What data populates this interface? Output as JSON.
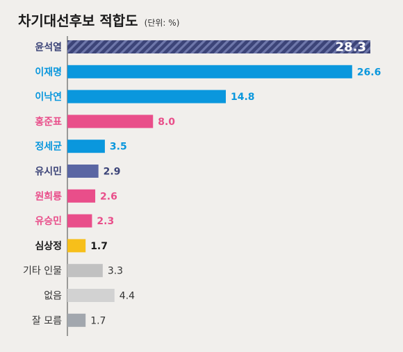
{
  "chart_data": {
    "type": "bar",
    "orientation": "horizontal",
    "title": "차기대선후보 적합도",
    "unit": "(단위: %)",
    "xlim": [
      0,
      28.3
    ],
    "grid": false,
    "legend": "none",
    "categories": [
      "윤석열",
      "이재명",
      "이낙연",
      "홍준표",
      "정세균",
      "유시민",
      "원희룡",
      "유승민",
      "심상정",
      "기타 인물",
      "없음",
      "잘 모름"
    ],
    "values": [
      28.3,
      26.6,
      14.8,
      8.0,
      3.5,
      2.9,
      2.6,
      2.3,
      1.7,
      3.3,
      4.4,
      1.7
    ],
    "value_labels": [
      "28.3",
      "26.6",
      "14.8",
      "8.0",
      "3.5",
      "2.9",
      "2.6",
      "2.3",
      "1.7",
      "3.3",
      "4.4",
      "1.7"
    ],
    "colors": [
      "#3c4478",
      "#0a97dd",
      "#0a97dd",
      "#e94e8a",
      "#0a97dd",
      "#5a66a3",
      "#e94e8a",
      "#e94e8a",
      "#f7bf1a",
      "#c1c1c1",
      "#d2d2d2",
      "#a2a7ae"
    ],
    "label_colors": [
      "#3c4478",
      "#0a97dd",
      "#0a97dd",
      "#e94e8a",
      "#0a97dd",
      "#3c4478",
      "#e94e8a",
      "#e94e8a",
      "#1a1a1a",
      "#333333",
      "#333333",
      "#333333"
    ],
    "label_bold": [
      true,
      true,
      true,
      true,
      true,
      true,
      true,
      true,
      true,
      false,
      false,
      false
    ],
    "patterned": [
      true,
      false,
      false,
      false,
      false,
      false,
      false,
      false,
      false,
      false,
      false,
      false
    ]
  }
}
